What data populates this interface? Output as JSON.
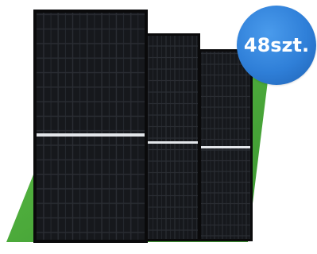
{
  "badge": {
    "label": "48szt.",
    "color": "#2f7fd8",
    "text_color": "#ffffff"
  },
  "colors": {
    "background": "#ffffff",
    "green_backdrop": "#4aa83a",
    "panel_cell": "#1b1d21",
    "panel_frame": "#0a0a0b",
    "busbar": "#e3e6ea"
  },
  "image": {
    "subject": "solar-panels",
    "panel_count_shown": 3
  }
}
